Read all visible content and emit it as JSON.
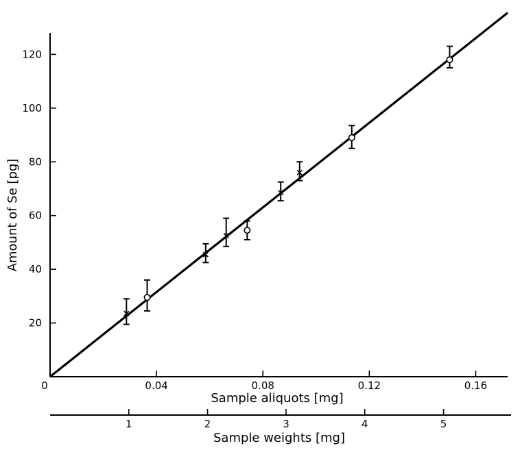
{
  "chart_data": {
    "type": "scatter",
    "xlabel": "Sample aliquots [mg]",
    "ylabel": "Amount of Se [pg]",
    "secondary_xlabel": "Sample weights [mg]",
    "origin_label": "0",
    "xlim": [
      0,
      0.172
    ],
    "ylim": [
      0,
      128
    ],
    "xticks": [
      {
        "value": 0.04,
        "label": "0.04"
      },
      {
        "value": 0.08,
        "label": "0.08"
      },
      {
        "value": 0.12,
        "label": "0.12"
      },
      {
        "value": 0.16,
        "label": "0.16"
      }
    ],
    "yticks": [
      {
        "value": 20,
        "label": "20"
      },
      {
        "value": 40,
        "label": "40"
      },
      {
        "value": 60,
        "label": "60"
      },
      {
        "value": 80,
        "label": "80"
      },
      {
        "value": 100,
        "label": "100"
      },
      {
        "value": 120,
        "label": "120"
      }
    ],
    "secondary_xticks": [
      {
        "aliquot": 0.0296,
        "label": "1"
      },
      {
        "aliquot": 0.0592,
        "label": "2"
      },
      {
        "aliquot": 0.0887,
        "label": "3"
      },
      {
        "aliquot": 0.1183,
        "label": "4"
      },
      {
        "aliquot": 0.1479,
        "label": "5"
      }
    ],
    "fit_line": {
      "x": [
        0,
        0.172
      ],
      "y": [
        0,
        135.5
      ]
    },
    "series": [
      {
        "marker": "x",
        "points": [
          {
            "x": 0.0287,
            "y": 23.5,
            "ylo": 19.5,
            "yhi": 29
          },
          {
            "x": 0.0585,
            "y": 45.5,
            "ylo": 42.5,
            "yhi": 49.5
          },
          {
            "x": 0.0662,
            "y": 52.5,
            "ylo": 48.5,
            "yhi": 59
          },
          {
            "x": 0.0867,
            "y": 68.5,
            "ylo": 65.5,
            "yhi": 72.5
          },
          {
            "x": 0.0938,
            "y": 76,
            "ylo": 73,
            "yhi": 80
          }
        ]
      },
      {
        "marker": "o",
        "points": [
          {
            "x": 0.0365,
            "y": 29.5,
            "ylo": 24.5,
            "yhi": 36
          },
          {
            "x": 0.0741,
            "y": 54.5,
            "ylo": 51,
            "yhi": 58
          },
          {
            "x": 0.1134,
            "y": 89,
            "ylo": 85,
            "yhi": 93.5
          },
          {
            "x": 0.1502,
            "y": 118,
            "ylo": 115,
            "yhi": 123
          }
        ]
      }
    ]
  }
}
